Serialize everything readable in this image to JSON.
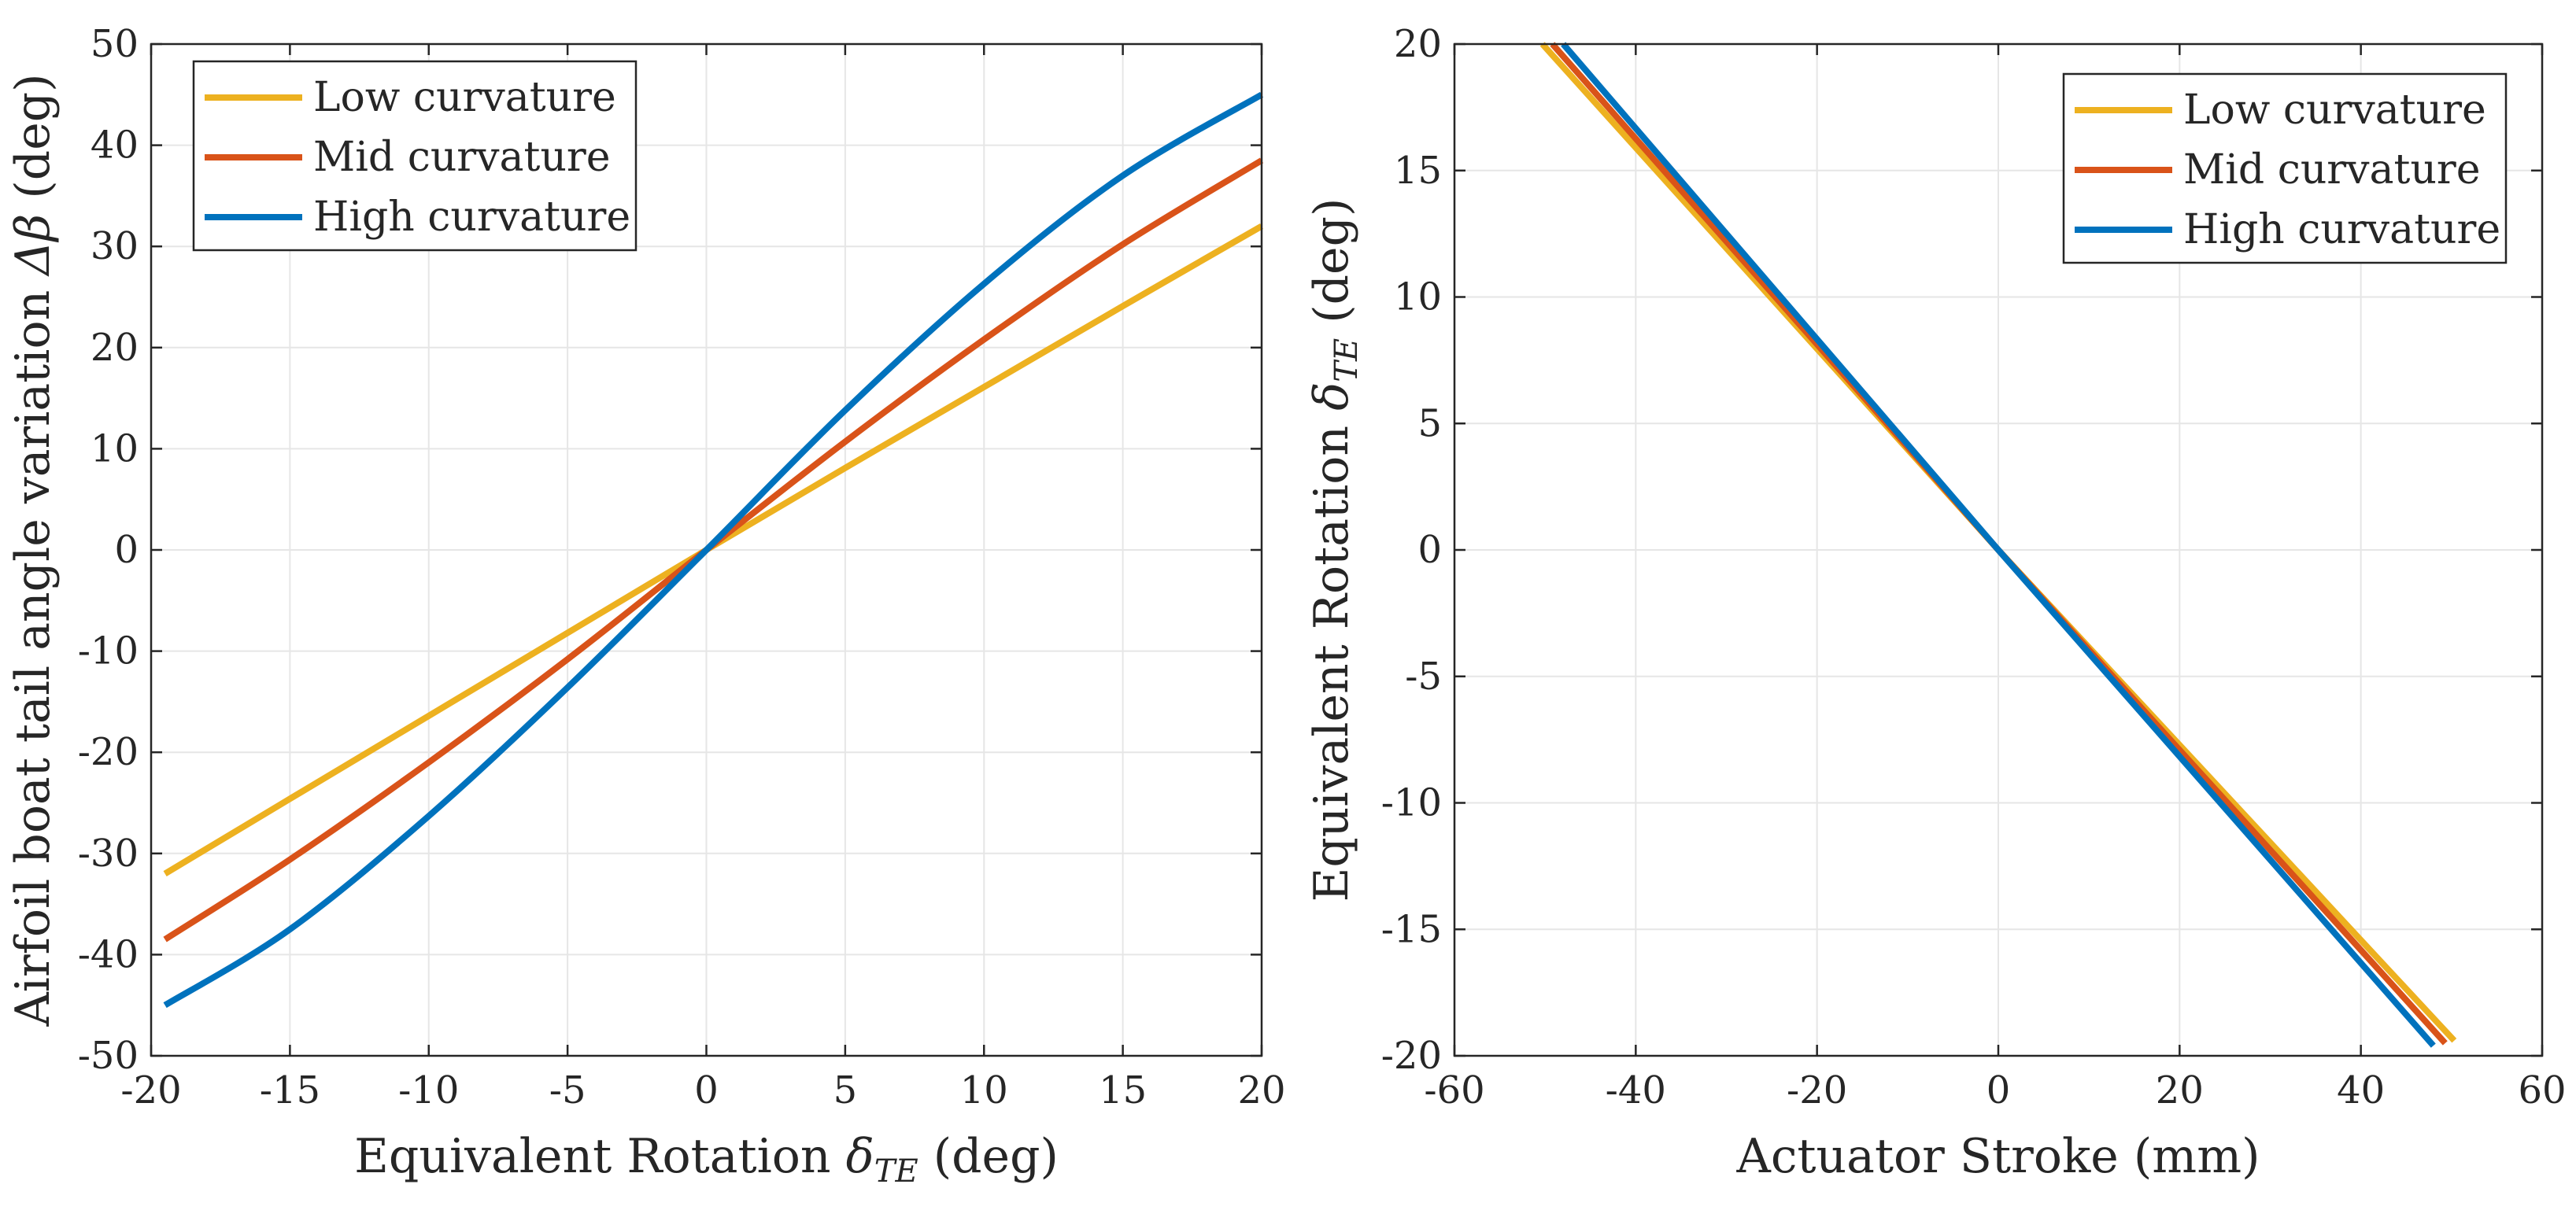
{
  "chart_data": [
    {
      "type": "line",
      "xlabel": "Equivalent Rotation",
      "xlabel_symbol": "δ",
      "xlabel_sub": "TE",
      "xlabel_unit": "(deg)",
      "ylabel": "Airfoil boat tail angle variation",
      "ylabel_symbol": "Δβ",
      "ylabel_unit": "(deg)",
      "xlim": [
        -20,
        20
      ],
      "ylim": [
        -50,
        50
      ],
      "xticks": [
        -20,
        -15,
        -10,
        -5,
        0,
        5,
        10,
        15,
        20
      ],
      "yticks": [
        -50,
        -40,
        -30,
        -20,
        -10,
        0,
        10,
        20,
        30,
        40,
        50
      ],
      "grid": true,
      "legend_position": "top-left",
      "series": [
        {
          "name": "Low curvature",
          "color": "#EDB120",
          "x": [
            -19.5,
            -15,
            -10,
            -5,
            0,
            5,
            10,
            15,
            20
          ],
          "y": [
            -32,
            -24.6,
            -16.4,
            -8.2,
            0,
            8.1,
            16.1,
            24.1,
            32
          ]
        },
        {
          "name": "Mid curvature",
          "color": "#D95319",
          "x": [
            -19.5,
            -15,
            -10,
            -5,
            0,
            5,
            10,
            15,
            20
          ],
          "y": [
            -38.5,
            -30.6,
            -21,
            -10.8,
            0,
            10.7,
            20.8,
            30.2,
            38.5
          ]
        },
        {
          "name": "High curvature",
          "color": "#0072BD",
          "x": [
            -19.5,
            -15,
            -10,
            -5,
            0,
            5,
            10,
            15,
            20
          ],
          "y": [
            -45,
            -37.5,
            -26.3,
            -13.6,
            0,
            13.8,
            26.3,
            37,
            45
          ]
        }
      ]
    },
    {
      "type": "line",
      "xlabel": "Actuator Stroke (mm)",
      "ylabel": "Equivalent Rotation",
      "ylabel_symbol": "δ",
      "ylabel_sub": "TE",
      "ylabel_unit": "(deg)",
      "xlim": [
        -60,
        60
      ],
      "ylim": [
        -20,
        20
      ],
      "xticks": [
        -60,
        -40,
        -20,
        0,
        20,
        40,
        60
      ],
      "yticks": [
        -20,
        -15,
        -10,
        -5,
        0,
        5,
        10,
        15,
        20
      ],
      "grid": true,
      "legend_position": "top-right",
      "series": [
        {
          "name": "Low curvature",
          "color": "#EDB120",
          "x": [
            -50.3,
            0,
            50.3
          ],
          "y": [
            20,
            0,
            -19.4
          ]
        },
        {
          "name": "Mid curvature",
          "color": "#D95319",
          "x": [
            -49.2,
            0,
            49.3
          ],
          "y": [
            20,
            0,
            -19.5
          ]
        },
        {
          "name": "High curvature",
          "color": "#0072BD",
          "x": [
            -48,
            0,
            48
          ],
          "y": [
            20,
            0,
            -19.6
          ]
        }
      ]
    }
  ]
}
